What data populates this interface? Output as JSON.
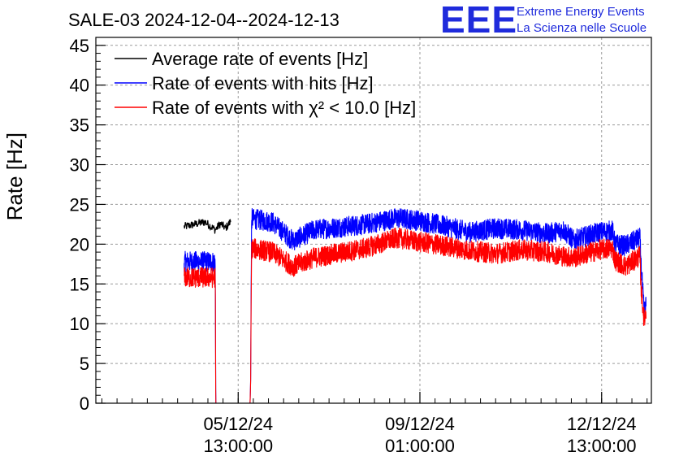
{
  "title": "SALE-03 2024-12-04--2024-12-13",
  "logo": {
    "mark": "EEE",
    "line1": "Extreme Energy Events",
    "line2": "La Scienza nelle Scuole",
    "color": "#1f2bdc"
  },
  "chart_data": {
    "type": "line",
    "title": "SALE-03 2024-12-04--2024-12-13",
    "xlabel": "",
    "ylabel": "Rate [Hz]",
    "ylim": [
      0,
      46
    ],
    "xlim": [
      -1.2,
      9.5
    ],
    "grid": true,
    "legend_position": "top-left",
    "x_unit": "days since 2024-12-04 00:00",
    "x_ticks": [
      {
        "x": 1.5417,
        "date": "05/12/24",
        "time": "13:00:00"
      },
      {
        "x": 5.0417,
        "date": "09/12/24",
        "time": "01:00:00"
      },
      {
        "x": 8.5417,
        "date": "12/12/24",
        "time": "13:00:00"
      }
    ],
    "y_ticks": [
      0,
      5,
      10,
      15,
      20,
      25,
      30,
      35,
      40,
      45
    ],
    "series": [
      {
        "name": "Average rate of events [Hz]",
        "color": "#000000",
        "x": [
          0.5,
          0.7,
          0.9,
          1.0,
          1.1,
          1.2,
          1.3,
          1.4
        ],
        "values": [
          22.2,
          22.5,
          22.8,
          22.3,
          21.8,
          22.6,
          22.0,
          22.9
        ]
      },
      {
        "name": "Rate of events with hits [Hz]",
        "color": "#0000ff",
        "x": [
          0.5,
          1.1,
          1.11,
          1.77,
          1.78,
          1.8,
          2.2,
          2.6,
          3.0,
          3.6,
          4.0,
          4.6,
          5.0,
          5.5,
          6.0,
          6.5,
          7.0,
          7.5,
          7.8,
          8.0,
          8.5,
          8.75,
          8.8,
          9.0,
          9.28,
          9.3,
          9.36,
          9.4
        ],
        "values": [
          17.8,
          17.8,
          0,
          0,
          2.0,
          23.2,
          22.8,
          20.4,
          21.8,
          22.2,
          22.5,
          23.3,
          23.0,
          22.3,
          21.5,
          22.0,
          21.8,
          21.3,
          21.8,
          20.5,
          21.5,
          21.7,
          20.0,
          19.8,
          20.8,
          17.5,
          11.5,
          12.5
        ]
      },
      {
        "name": "Rate of events with χ² < 10.0 [Hz]",
        "color": "#ff0000",
        "x": [
          0.5,
          1.1,
          1.11,
          1.77,
          1.78,
          1.8,
          2.2,
          2.6,
          3.0,
          3.6,
          4.0,
          4.6,
          5.0,
          5.5,
          6.0,
          6.5,
          7.0,
          7.5,
          7.8,
          8.0,
          8.5,
          8.75,
          8.8,
          9.0,
          9.28,
          9.3,
          9.36,
          9.4
        ],
        "values": [
          15.8,
          15.8,
          0,
          0,
          2.0,
          19.5,
          19.0,
          17.2,
          18.3,
          19.0,
          19.5,
          20.8,
          20.3,
          19.8,
          19.2,
          18.8,
          19.3,
          19.0,
          18.5,
          18.3,
          19.3,
          19.5,
          18.0,
          17.2,
          18.5,
          14.5,
          10.5,
          11.5
        ]
      }
    ]
  }
}
